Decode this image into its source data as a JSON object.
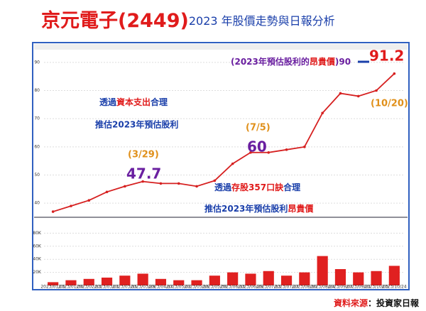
{
  "title": {
    "main": "京元電子(2449)",
    "sub": "2023 年股價走勢與日報分析"
  },
  "chart_data": {
    "type": "line",
    "categories": [
      "2023/01/05",
      "2023/01/30",
      "2023/02/13",
      "2023/03/01",
      "2023/03/15",
      "2023/03/29",
      "2023/04/17",
      "2023/05/02",
      "2023/05/16",
      "2023/05/30",
      "2023/06/13",
      "2023/06/29",
      "2023/07/13",
      "2023/07/27",
      "2023/08/10",
      "2023/08/24",
      "2023/09/07",
      "2023/09/21",
      "2023/10/05",
      "2023/10/24"
    ],
    "series": [
      {
        "color": "#d62020",
        "values": [
          37,
          39,
          41,
          44,
          46,
          47.7,
          47,
          47,
          46,
          48,
          54,
          58,
          58,
          59,
          60,
          72,
          79,
          78,
          80,
          86
        ]
      }
    ],
    "ylim": [
      35,
      95
    ],
    "yticks": [
      40,
      50,
      60,
      70,
      80,
      90
    ],
    "volume": {
      "color": "#e02020",
      "values": [
        5,
        8,
        10,
        12,
        15,
        18,
        10,
        8,
        8,
        15,
        20,
        18,
        22,
        15,
        20,
        45,
        25,
        20,
        22,
        30
      ],
      "ylim": [
        0,
        100
      ],
      "yticks": [
        {
          "value": 20,
          "label": "20K"
        },
        {
          "value": 40,
          "label": "40K"
        },
        {
          "value": 60,
          "label": "60K"
        },
        {
          "value": 80,
          "label": "80K"
        }
      ]
    }
  },
  "annotations": {
    "expensive": {
      "a": "(2023年預估股利的",
      "b": "昂貴價",
      "c": ")90"
    },
    "high": {
      "value": "91.2",
      "date": "(10/20)"
    },
    "capex": {
      "line1": {
        "a": "透過",
        "b": "資本支出",
        "c": "合理"
      },
      "line2": "推估2023年預估股利"
    },
    "mar": {
      "date": "(3/29)",
      "value": "47.7"
    },
    "jul": {
      "date": "(7/5)",
      "value": "60"
    },
    "stock357": {
      "line1": {
        "a": "透過",
        "b": "存股357口訣",
        "c": "合理"
      },
      "line2": {
        "a": "推估2023年預估股利",
        "b": "昂貴價"
      }
    }
  },
  "footer": {
    "a": "資料來源",
    "b": "：投資家日報"
  }
}
